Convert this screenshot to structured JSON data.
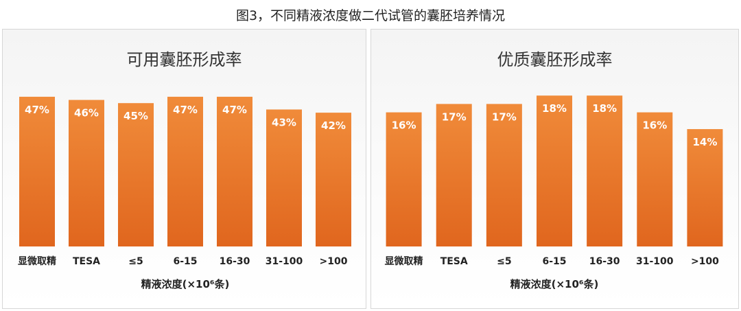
{
  "figure_title": "图3，不同精液浓度做二代试管的囊胚培养情况",
  "colors": {
    "bar_top": "#f08b3a",
    "bar_bottom": "#e0661e",
    "label": "#ffffff",
    "axis_text": "#222222"
  },
  "chart_data": [
    {
      "type": "bar",
      "title": "可用囊胚形成率",
      "xlabel": "精液浓度(×10⁶条)",
      "ylabel": "",
      "categories": [
        "显微取精",
        "TESA",
        "≤5",
        "6-15",
        "16-30",
        "31-100",
        ">100"
      ],
      "values": [
        47,
        46,
        45,
        47,
        47,
        43,
        42
      ],
      "data_labels": [
        "47%",
        "46%",
        "45%",
        "47%",
        "47%",
        "43%",
        "42%"
      ],
      "ylim": [
        0,
        50
      ],
      "grid": false,
      "legend": "none"
    },
    {
      "type": "bar",
      "title": "优质囊胚形成率",
      "xlabel": "精液浓度(×10⁶条)",
      "ylabel": "",
      "categories": [
        "显微取精",
        "TESA",
        "≤5",
        "6-15",
        "16-30",
        "31-100",
        ">100"
      ],
      "values": [
        16,
        17,
        17,
        18,
        18,
        16,
        14
      ],
      "data_labels": [
        "16%",
        "17%",
        "17%",
        "18%",
        "18%",
        "16%",
        "14%"
      ],
      "ylim": [
        0,
        19
      ],
      "grid": false,
      "legend": "none"
    }
  ]
}
